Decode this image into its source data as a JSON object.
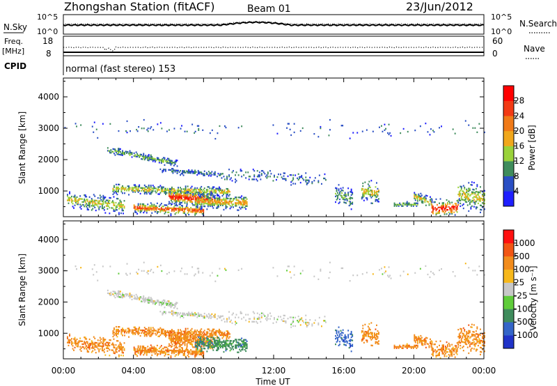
{
  "header": {
    "station": "Zhongshan Station (fitACF)",
    "beam": "Beam 01",
    "date": "23/Jun/2012"
  },
  "strips": {
    "nsky": {
      "label": "N.Sky",
      "tick_top": "10^5",
      "tick_bottom": "10^0",
      "right_label": "N.Search",
      "right_tick_top": "10^5",
      "right_tick_bottom": "10^0"
    },
    "freq": {
      "label_line1": "Freq.",
      "label_line2": "[MHz]",
      "tick_top": "18",
      "tick_bottom": "8",
      "right_label": "Nave",
      "right_tick_top": "60",
      "right_tick_bottom": "0"
    },
    "cpid": {
      "label": "CPID",
      "text": "normal (fast stereo) 153"
    }
  },
  "chart_data": [
    {
      "type": "heatmap",
      "name": "power",
      "ylabel": "Slant Range [km]",
      "ylim": [
        180,
        4600
      ],
      "yticks": [
        1000,
        2000,
        3000,
        4000
      ],
      "x_ticks": [
        "00:00",
        "04:00",
        "08:00",
        "12:00",
        "16:00",
        "20:00",
        "00:00"
      ],
      "colorbar": {
        "label": "Power [dB]",
        "tick_labels": [
          "4",
          "8",
          "12",
          "16",
          "20",
          "24",
          "28"
        ],
        "colors": [
          "#1f1fff",
          "#2a4fc4",
          "#3f8c5c",
          "#9ad23a",
          "#f0a71c",
          "#f07a18",
          "#f23a14",
          "#ff0000"
        ]
      }
    },
    {
      "type": "heatmap",
      "name": "velocity",
      "ylabel": "Slant Range [km]",
      "xlabel": "Time UT",
      "ylim": [
        180,
        4600
      ],
      "yticks": [
        1000,
        2000,
        3000,
        4000
      ],
      "x_ticks": [
        "00:00",
        "04:00",
        "08:00",
        "12:00",
        "16:00",
        "20:00",
        "00:00"
      ],
      "colorbar": {
        "label": "Velocity [m s⁻¹]",
        "tick_labels": [
          "1000",
          "500",
          "100",
          "25",
          "-25",
          "-100",
          "-500",
          "-1000"
        ],
        "colors": [
          "#2033c8",
          "#3465c8",
          "#3f8c5c",
          "#5fcc3a",
          "#c8c8c8",
          "#f7b81b",
          "#f28c1c",
          "#f25614",
          "#ff1010"
        ]
      }
    }
  ]
}
